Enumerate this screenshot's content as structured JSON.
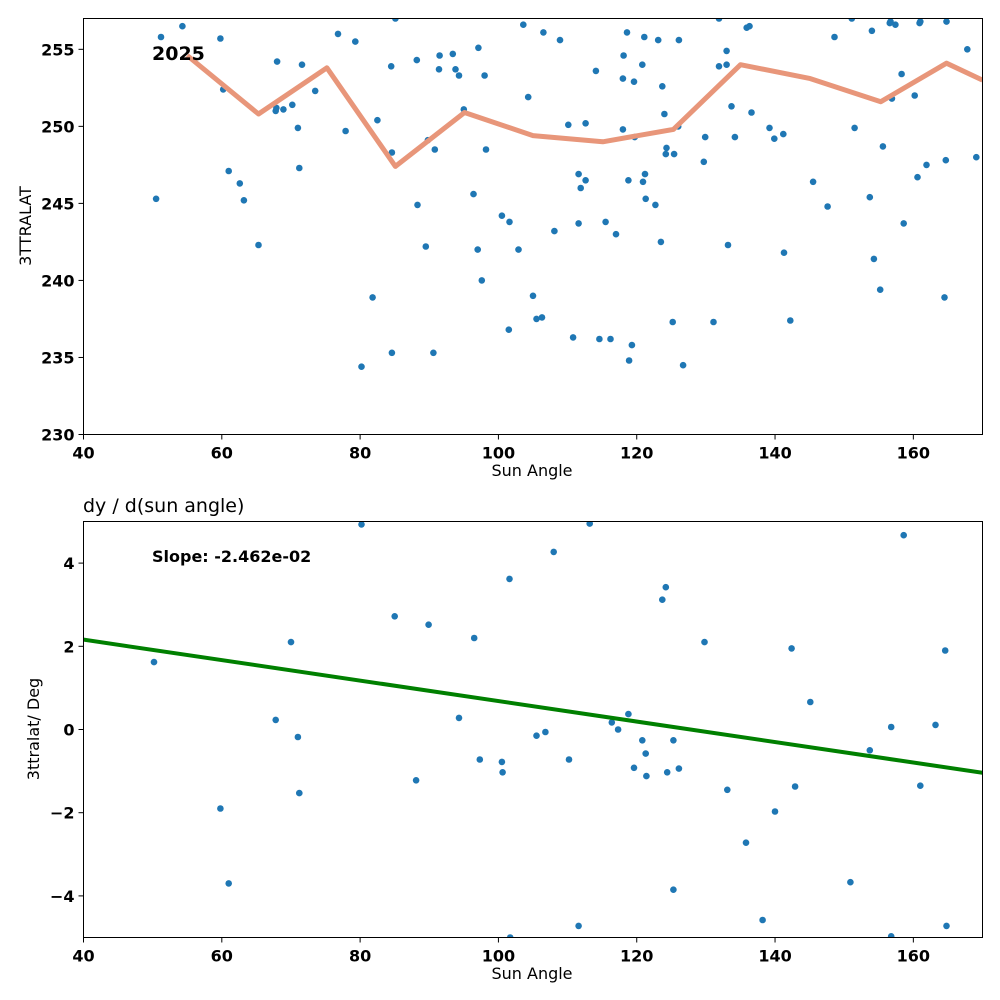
{
  "colors": {
    "point": "#1f77b4",
    "median_line": "#e8967a",
    "fit_line": "#008000",
    "axes": "#000000"
  },
  "chart_data": [
    {
      "type": "scatter",
      "title": "",
      "xlabel": "Sun Angle",
      "ylabel": "3TTRALAT",
      "xlim": [
        40,
        170
      ],
      "ylim": [
        230,
        257
      ],
      "xticks": [
        "40",
        "60",
        "80",
        "100",
        "120",
        "140",
        "160"
      ],
      "yticks": [
        "230",
        "235",
        "240",
        "245",
        "250",
        "255"
      ],
      "annotation": "2025",
      "grid": false,
      "points": [
        [
          50.5,
          245.3
        ],
        [
          51.2,
          255.8
        ],
        [
          54.3,
          256.5
        ],
        [
          59.8,
          255.7
        ],
        [
          60.2,
          252.4
        ],
        [
          61.0,
          247.1
        ],
        [
          62.6,
          246.3
        ],
        [
          63.2,
          245.2
        ],
        [
          65.3,
          242.3
        ],
        [
          67.8,
          251.0
        ],
        [
          67.9,
          251.2
        ],
        [
          68.0,
          254.2
        ],
        [
          68.9,
          251.1
        ],
        [
          70.2,
          251.4
        ],
        [
          71.0,
          249.9
        ],
        [
          71.2,
          247.3
        ],
        [
          71.6,
          254.0
        ],
        [
          73.5,
          252.3
        ],
        [
          76.8,
          256.0
        ],
        [
          77.9,
          249.7
        ],
        [
          79.3,
          255.5
        ],
        [
          80.2,
          234.4
        ],
        [
          81.8,
          238.9
        ],
        [
          82.5,
          250.4
        ],
        [
          84.5,
          253.9
        ],
        [
          84.6,
          248.3
        ],
        [
          84.6,
          235.3
        ],
        [
          85.1,
          257.0
        ],
        [
          88.2,
          254.3
        ],
        [
          88.3,
          244.9
        ],
        [
          89.5,
          242.2
        ],
        [
          89.8,
          249.1
        ],
        [
          90.6,
          235.3
        ],
        [
          90.8,
          248.5
        ],
        [
          91.4,
          253.7
        ],
        [
          91.5,
          254.6
        ],
        [
          93.4,
          254.7
        ],
        [
          93.8,
          253.7
        ],
        [
          94.3,
          253.3
        ],
        [
          95.0,
          251.1
        ],
        [
          96.4,
          245.6
        ],
        [
          97.0,
          242.0
        ],
        [
          97.1,
          255.1
        ],
        [
          97.6,
          240.0
        ],
        [
          98.0,
          253.3
        ],
        [
          98.2,
          248.5
        ],
        [
          100.5,
          244.2
        ],
        [
          101.5,
          236.8
        ],
        [
          101.6,
          243.8
        ],
        [
          102.9,
          242.0
        ],
        [
          103.6,
          256.6
        ],
        [
          104.3,
          251.9
        ],
        [
          105.0,
          239.0
        ],
        [
          105.5,
          237.5
        ],
        [
          106.3,
          237.6
        ],
        [
          106.5,
          256.1
        ],
        [
          108.1,
          243.2
        ],
        [
          108.9,
          255.6
        ],
        [
          110.1,
          250.1
        ],
        [
          110.8,
          236.3
        ],
        [
          111.6,
          246.9
        ],
        [
          111.6,
          243.7
        ],
        [
          111.9,
          246.0
        ],
        [
          112.6,
          250.2
        ],
        [
          112.6,
          246.5
        ],
        [
          114.1,
          253.6
        ],
        [
          114.6,
          236.2
        ],
        [
          115.5,
          243.8
        ],
        [
          116.2,
          236.2
        ],
        [
          117.0,
          243.0
        ],
        [
          118.0,
          249.8
        ],
        [
          118.0,
          253.1
        ],
        [
          118.1,
          254.6
        ],
        [
          118.6,
          256.1
        ],
        [
          118.8,
          246.5
        ],
        [
          118.9,
          234.8
        ],
        [
          119.3,
          235.8
        ],
        [
          119.6,
          252.9
        ],
        [
          119.7,
          249.3
        ],
        [
          120.8,
          254.0
        ],
        [
          120.9,
          246.4
        ],
        [
          121.1,
          255.8
        ],
        [
          121.2,
          246.9
        ],
        [
          121.3,
          245.3
        ],
        [
          122.7,
          244.9
        ],
        [
          123.1,
          255.6
        ],
        [
          123.5,
          242.5
        ],
        [
          123.7,
          252.6
        ],
        [
          124.0,
          250.8
        ],
        [
          124.2,
          248.2
        ],
        [
          124.3,
          248.6
        ],
        [
          125.2,
          237.3
        ],
        [
          125.4,
          248.2
        ],
        [
          126.0,
          250.0
        ],
        [
          126.1,
          255.6
        ],
        [
          126.7,
          234.5
        ],
        [
          129.7,
          247.7
        ],
        [
          129.9,
          249.3
        ],
        [
          131.1,
          237.3
        ],
        [
          131.9,
          257.0
        ],
        [
          131.9,
          253.9
        ],
        [
          133.0,
          254.0
        ],
        [
          133.0,
          254.9
        ],
        [
          133.2,
          242.3
        ],
        [
          133.7,
          251.3
        ],
        [
          134.2,
          249.3
        ],
        [
          135.9,
          256.4
        ],
        [
          136.3,
          256.5
        ],
        [
          136.6,
          250.9
        ],
        [
          139.2,
          249.9
        ],
        [
          139.9,
          249.2
        ],
        [
          141.2,
          249.5
        ],
        [
          141.3,
          241.8
        ],
        [
          142.2,
          237.4
        ],
        [
          145.5,
          246.4
        ],
        [
          147.6,
          244.8
        ],
        [
          148.6,
          255.8
        ],
        [
          151.1,
          257.0
        ],
        [
          151.5,
          249.9
        ],
        [
          153.7,
          245.4
        ],
        [
          154.0,
          256.2
        ],
        [
          154.3,
          241.4
        ],
        [
          155.2,
          239.4
        ],
        [
          155.6,
          248.7
        ],
        [
          156.6,
          256.7
        ],
        [
          156.7,
          256.8
        ],
        [
          156.9,
          251.8
        ],
        [
          157.4,
          256.6
        ],
        [
          158.3,
          253.4
        ],
        [
          158.6,
          243.7
        ],
        [
          160.2,
          252.0
        ],
        [
          160.6,
          246.7
        ],
        [
          160.9,
          256.7
        ],
        [
          161.0,
          256.8
        ],
        [
          161.9,
          247.5
        ],
        [
          164.5,
          238.9
        ],
        [
          164.7,
          247.8
        ],
        [
          164.8,
          256.8
        ],
        [
          167.8,
          255.0
        ],
        [
          169.1,
          248.0
        ]
      ],
      "median_line": [
        [
          55.0,
          254.6
        ],
        [
          65.3,
          250.8
        ],
        [
          75.2,
          253.8
        ],
        [
          85.1,
          247.4
        ],
        [
          95.1,
          250.9
        ],
        [
          105.0,
          249.4
        ],
        [
          115.1,
          249.0
        ],
        [
          125.3,
          249.8
        ],
        [
          135.0,
          254.0
        ],
        [
          145.1,
          253.1
        ],
        [
          155.3,
          251.6
        ],
        [
          164.8,
          254.1
        ],
        [
          170.0,
          253.0
        ]
      ]
    },
    {
      "type": "scatter",
      "title": "dy / d(sun angle)",
      "xlabel": "Sun Angle",
      "ylabel": "3ttralat/ Deg",
      "xlim": [
        40,
        170
      ],
      "ylim": [
        -5,
        5
      ],
      "xticks": [
        "40",
        "60",
        "80",
        "100",
        "120",
        "140",
        "160"
      ],
      "yticks": [
        "−4",
        "−2",
        "0",
        "2",
        "4"
      ],
      "annotation": "Slope: -2.462e-02",
      "grid": false,
      "points": [
        [
          50.2,
          1.62
        ],
        [
          59.8,
          -1.9
        ],
        [
          61.0,
          -3.7
        ],
        [
          67.8,
          0.23
        ],
        [
          70.0,
          2.1
        ],
        [
          71.0,
          -0.18
        ],
        [
          71.2,
          -1.53
        ],
        [
          80.2,
          4.93
        ],
        [
          85.0,
          2.72
        ],
        [
          88.1,
          -1.22
        ],
        [
          89.9,
          2.52
        ],
        [
          94.3,
          0.28
        ],
        [
          96.5,
          2.2
        ],
        [
          97.3,
          -0.72
        ],
        [
          100.5,
          -0.78
        ],
        [
          100.6,
          -1.03
        ],
        [
          101.6,
          3.62
        ],
        [
          101.7,
          -5.0
        ],
        [
          105.5,
          -0.15
        ],
        [
          106.8,
          -0.06
        ],
        [
          108.0,
          4.27
        ],
        [
          110.2,
          -0.72
        ],
        [
          111.6,
          -4.72
        ],
        [
          113.2,
          4.95
        ],
        [
          116.4,
          0.17
        ],
        [
          117.3,
          0.0
        ],
        [
          118.8,
          0.37
        ],
        [
          119.6,
          -0.92
        ],
        [
          120.8,
          -0.26
        ],
        [
          121.3,
          -0.58
        ],
        [
          121.4,
          -1.12
        ],
        [
          123.7,
          3.12
        ],
        [
          124.2,
          3.42
        ],
        [
          124.4,
          -1.03
        ],
        [
          125.3,
          -3.85
        ],
        [
          125.3,
          -0.26
        ],
        [
          126.1,
          -0.94
        ],
        [
          129.8,
          2.1
        ],
        [
          133.1,
          -1.45
        ],
        [
          135.8,
          -2.72
        ],
        [
          138.2,
          -4.58
        ],
        [
          140.0,
          -1.97
        ],
        [
          142.4,
          1.95
        ],
        [
          142.9,
          -1.37
        ],
        [
          145.1,
          0.66
        ],
        [
          150.9,
          -3.67
        ],
        [
          153.7,
          -0.5
        ],
        [
          156.8,
          0.06
        ],
        [
          156.8,
          -4.97
        ],
        [
          158.6,
          4.67
        ],
        [
          161.0,
          -1.35
        ],
        [
          163.2,
          0.11
        ],
        [
          164.6,
          1.9
        ],
        [
          164.8,
          -4.72
        ]
      ],
      "fit_line": [
        [
          40,
          2.16
        ],
        [
          170,
          -1.04
        ]
      ]
    }
  ]
}
